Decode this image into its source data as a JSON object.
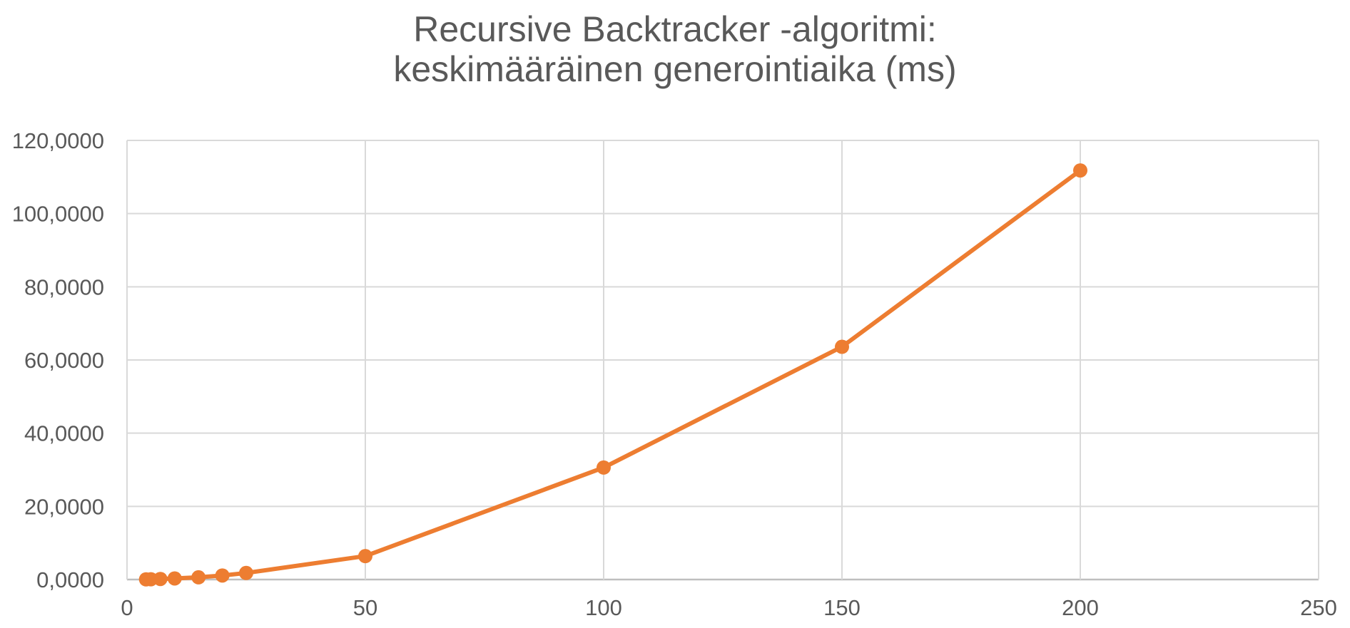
{
  "chart_data": {
    "type": "line",
    "title_lines": [
      "Recursive Backtracker -algoritmi:",
      "keskimääräinen generointiaika (ms)"
    ],
    "xlabel": "",
    "ylabel": "",
    "xlim": [
      0,
      250
    ],
    "ylim": [
      0,
      120
    ],
    "x_ticks": [
      0,
      50,
      100,
      150,
      200,
      250
    ],
    "x_tick_labels": [
      "0",
      "50",
      "100",
      "150",
      "200",
      "250"
    ],
    "y_ticks": [
      0,
      20,
      40,
      60,
      80,
      100,
      120
    ],
    "y_tick_labels": [
      "0,0000",
      "20,0000",
      "40,0000",
      "60,0000",
      "80,0000",
      "100,0000",
      "120,0000"
    ],
    "grid": true,
    "legend": "none",
    "series": [
      {
        "color": "#ed7d31",
        "x": [
          4,
          5,
          7,
          10,
          15,
          20,
          25,
          50,
          100,
          150,
          200
        ],
        "y": [
          0.05,
          0.08,
          0.15,
          0.3,
          0.6,
          1.1,
          1.8,
          6.4,
          30.6,
          63.6,
          111.8
        ]
      }
    ]
  }
}
